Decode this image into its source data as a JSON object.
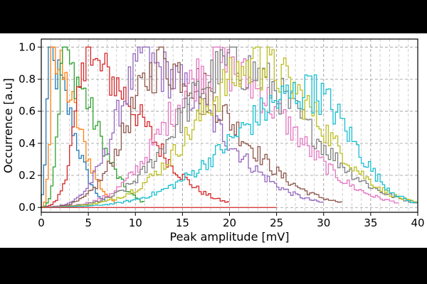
{
  "chart_data": {
    "type": "line",
    "style": "step histograms, one per series",
    "title": "",
    "xlabel": "Peak amplitude [mV]",
    "ylabel": "Occurrence [a.u]",
    "xlim": [
      0,
      40
    ],
    "ylim": [
      -0.03,
      1.05
    ],
    "xticks": [
      0,
      5,
      10,
      15,
      20,
      25,
      30,
      35,
      40
    ],
    "yticks": [
      0.0,
      0.2,
      0.4,
      0.6,
      0.8,
      1.0
    ],
    "ytick_labels": [
      "0.0",
      "0.2",
      "0.4",
      "0.6",
      "0.8",
      "1.0"
    ],
    "grid": {
      "minor_x_every": 1,
      "major_y_every": 0.2,
      "style": "dashed gray"
    },
    "legend": "none",
    "series": [
      {
        "color": "#1f77b4",
        "peak_x": 0.9,
        "peak_y": 1.0,
        "x_end": 7
      },
      {
        "color": "#ff7f0e",
        "peak_x": 1.3,
        "peak_y": 1.0,
        "x_end": 8
      },
      {
        "color": "#2ca02c",
        "peak_x": 2.4,
        "peak_y": 1.0,
        "x_end": 11
      },
      {
        "color": "#d62728",
        "peak_x": 5.0,
        "peak_y": 1.0,
        "x_end": 20
      },
      {
        "color": "#9467bd",
        "peak_x": 11.0,
        "peak_y": 1.0,
        "x_end": 30
      },
      {
        "color": "#8c564b",
        "peak_x": 12.8,
        "peak_y": 1.0,
        "x_end": 32
      },
      {
        "color": "#e377c2",
        "peak_x": 18.5,
        "peak_y": 1.0,
        "x_end": 38
      },
      {
        "color": "#7f7f7f",
        "peak_x": 20.3,
        "peak_y": 1.0,
        "x_end": 40
      },
      {
        "color": "#bcbd22",
        "peak_x": 23.0,
        "peak_y": 1.0,
        "x_end": 40
      },
      {
        "color": "#17becf",
        "peak_x": 28.5,
        "peak_y": 0.82,
        "x_end": 40
      }
    ]
  }
}
